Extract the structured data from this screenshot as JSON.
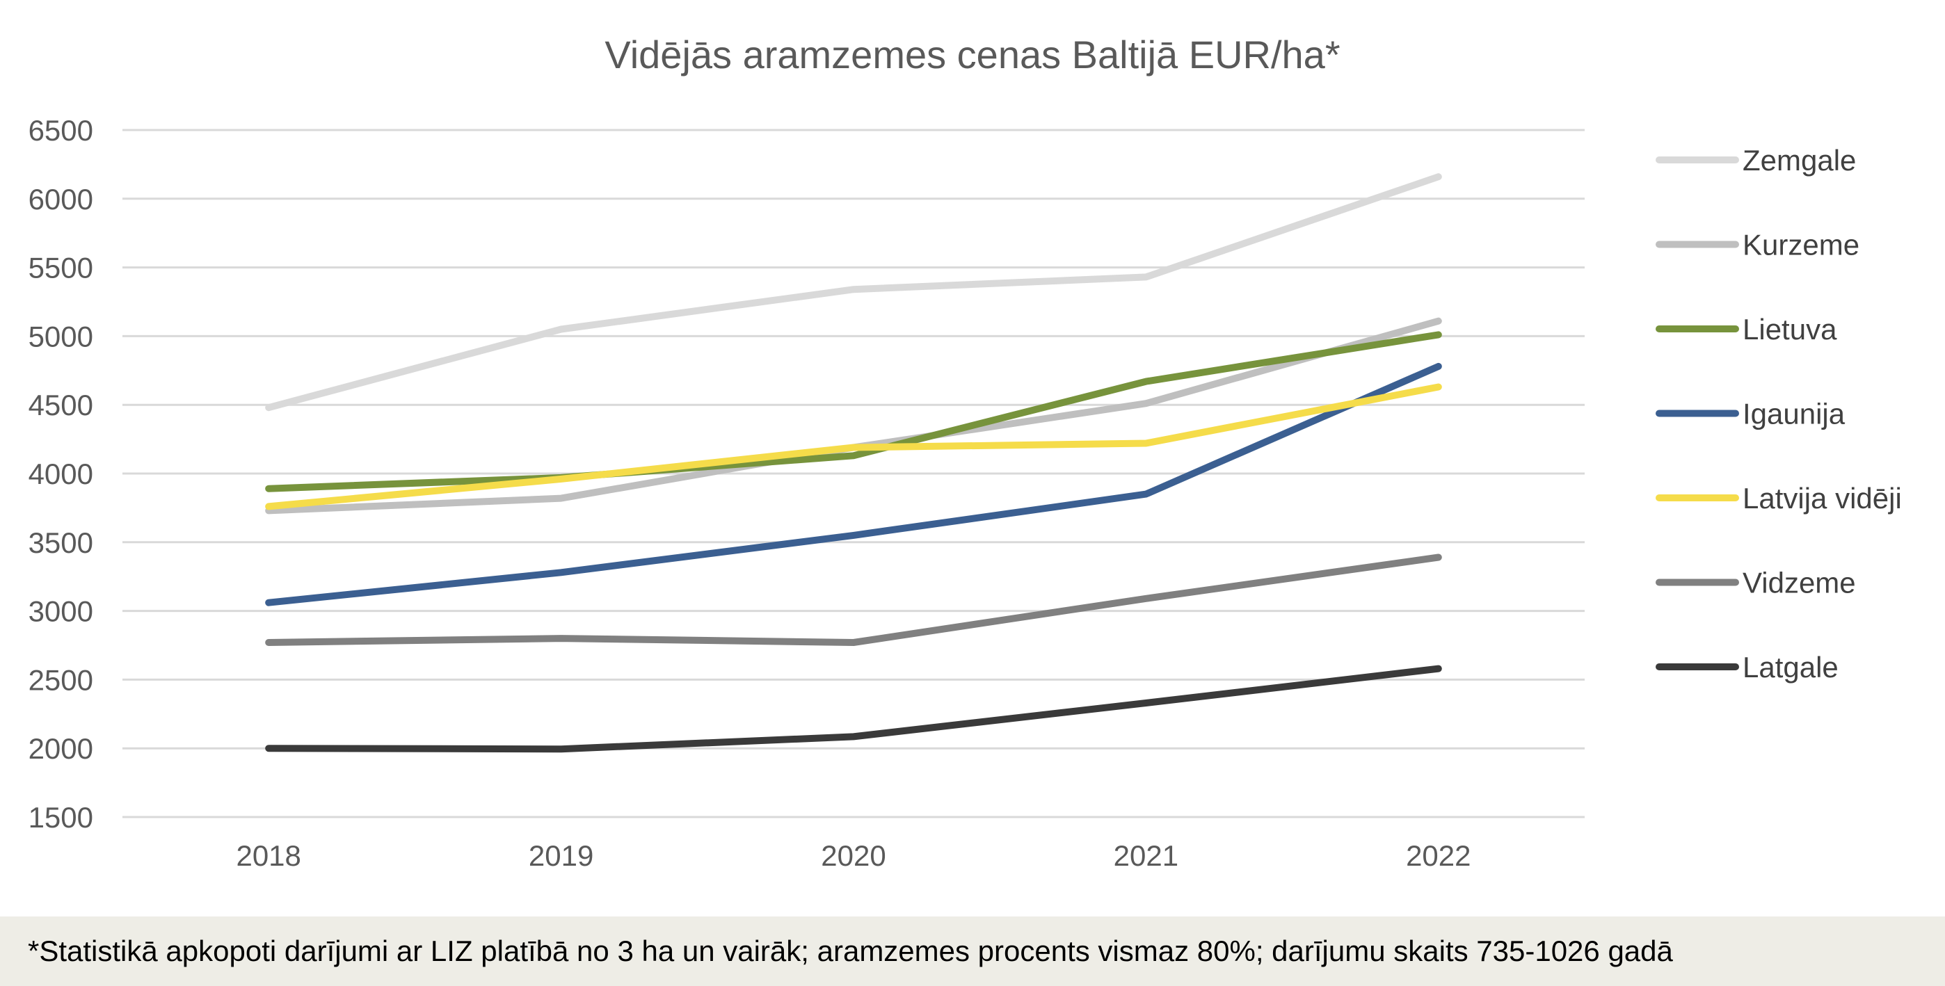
{
  "chart_data": {
    "type": "line",
    "title": "Vidējās aramzemes cenas Baltijā EUR/ha*",
    "xlabel": "",
    "ylabel": "",
    "categories": [
      "2018",
      "2019",
      "2020",
      "2021",
      "2022"
    ],
    "ylim": [
      1500,
      6500
    ],
    "yticks": [
      "6500",
      "6000",
      "5500",
      "5000",
      "4500",
      "4000",
      "3500",
      "3000",
      "2500",
      "2000",
      "1500"
    ],
    "grid": "horizontal",
    "legend_position": "right",
    "series": [
      {
        "name": "Zemgale",
        "color": "#d9d9d9",
        "values": [
          4480,
          5050,
          5340,
          5430,
          6160
        ]
      },
      {
        "name": "Kurzeme",
        "color": "#bfbfbf",
        "values": [
          3730,
          3820,
          4190,
          4510,
          5110
        ]
      },
      {
        "name": "Lietuva",
        "color": "#77933c",
        "values": [
          3890,
          3970,
          4130,
          4670,
          5010
        ]
      },
      {
        "name": "Igaunija",
        "color": "#3b5f91",
        "values": [
          3060,
          3280,
          3550,
          3850,
          4780
        ]
      },
      {
        "name": "Latvija vidēji",
        "color": "#f5dc4a",
        "values": [
          3760,
          3960,
          4190,
          4220,
          4630
        ]
      },
      {
        "name": "Vidzeme",
        "color": "#808080",
        "values": [
          2770,
          2800,
          2770,
          3090,
          3390
        ]
      },
      {
        "name": "Latgale",
        "color": "#3a3a3a",
        "values": [
          2000,
          1995,
          2085,
          2330,
          2580
        ]
      }
    ]
  },
  "footnote": "*Statistikā apkopoti darījumi ar LIZ platībā no 3 ha un vairāk; aramzemes procents vismaz 80%; darījumu skaits 735-1026 gadā"
}
